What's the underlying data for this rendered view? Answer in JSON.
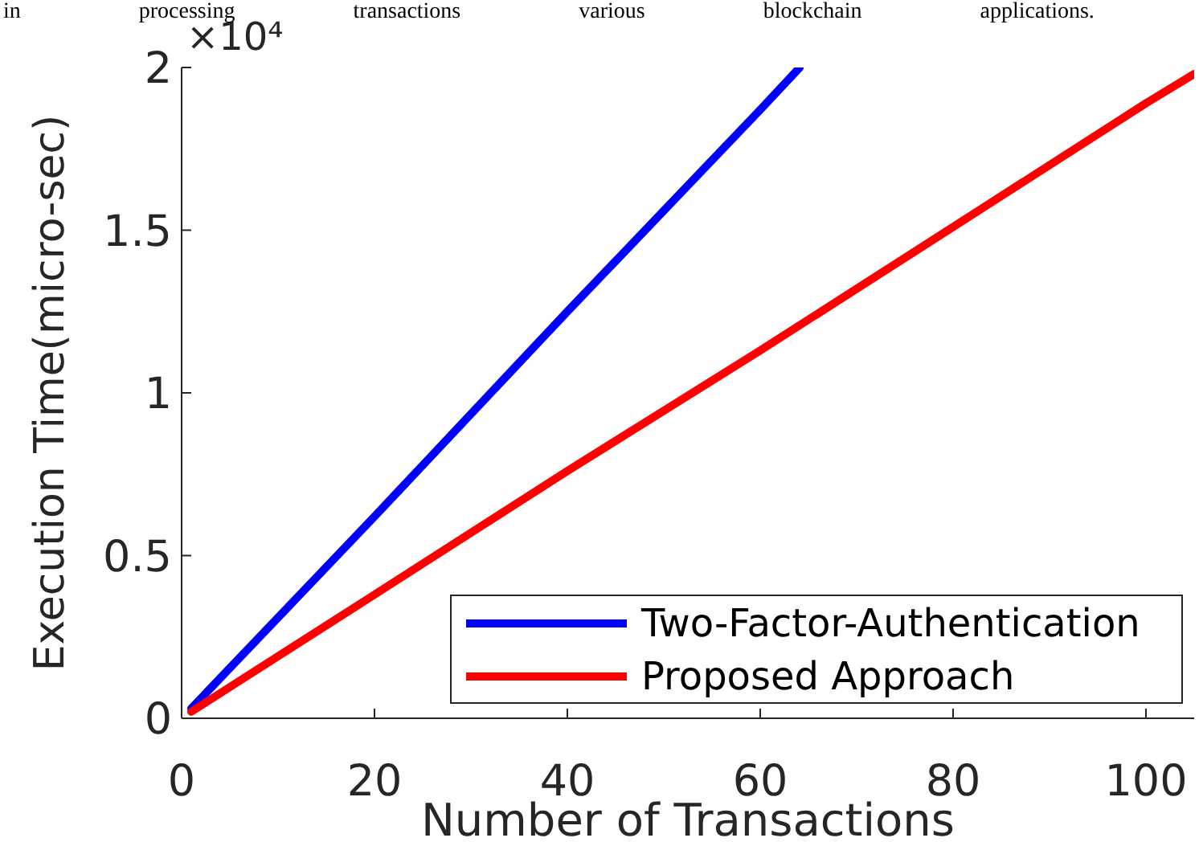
{
  "chart_data": {
    "type": "line",
    "xlabel": "Number of Transactions",
    "ylabel": "Execution Time(micro-sec)",
    "annotations": [
      "×10⁴",
      "in processing transactions various blockchain applications."
    ],
    "series": [
      {
        "name": "Two-Factor-Authentication",
        "color": "#0000ff",
        "x": [
          1,
          20,
          40,
          60,
          64.1
        ],
        "values": [
          0.03,
          0.62,
          1.25,
          1.87,
          2
        ]
      },
      {
        "name": "Proposed Approach",
        "color": "#ff0000",
        "x": [
          1,
          20,
          40,
          60,
          80,
          100,
          105
        ],
        "values": [
          0.02,
          0.38,
          0.76,
          1.13,
          1.51,
          1.89,
          1.98
        ]
      }
    ],
    "xlim": [
      0,
      105
    ],
    "xticks": [
      0,
      20,
      40,
      60,
      80,
      100
    ],
    "ylim": [
      0,
      2
    ],
    "yticks": [
      0,
      0.5,
      1,
      1.5,
      2
    ],
    "legend": "bottom right"
  }
}
